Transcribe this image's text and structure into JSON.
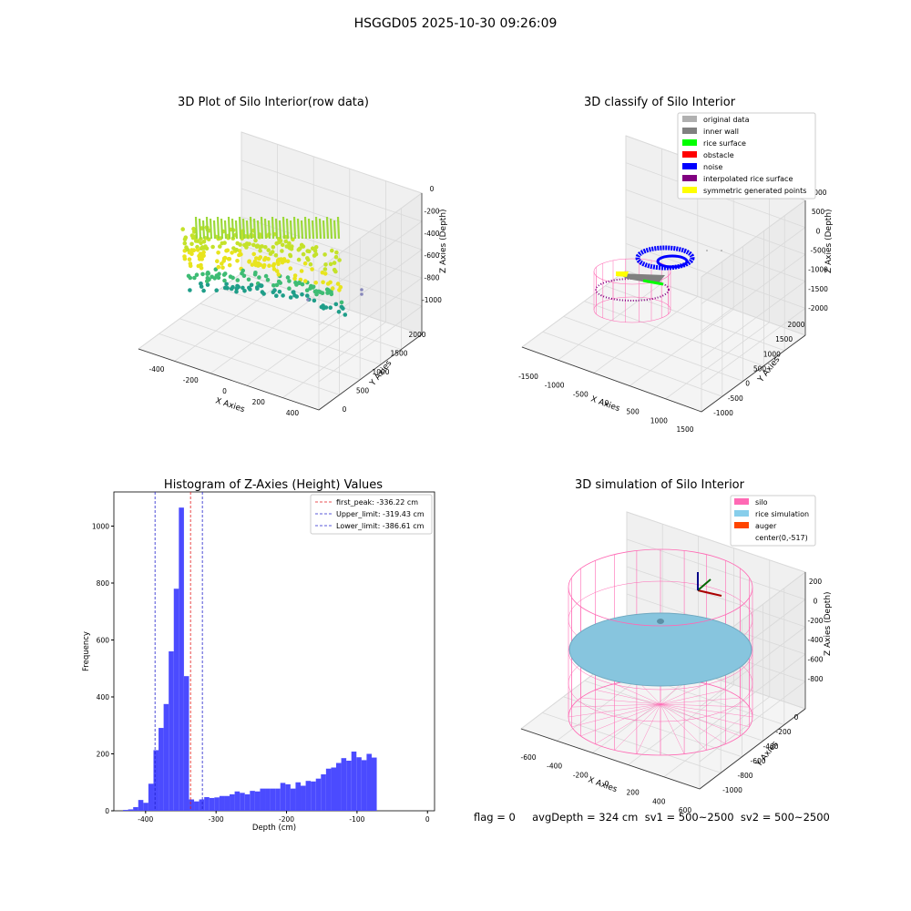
{
  "suptitle": "HSGGD05 2025-10-30 09:26:09",
  "footer": "flag = 0     avgDepth = 324 cm  sv1 = 500~2500  sv2 = 500~2500",
  "colors": {
    "wall": "#ff69b4",
    "rice": "#87c5de",
    "hist_bar": "#4b4bff",
    "peak_line": "#e41a1c",
    "limit_line": "#2222cc",
    "grid": "#d9d9d9",
    "pane": "#f0f0f0",
    "noise": "#0000ff",
    "interp": "#800080",
    "symmetric": "#ffff00",
    "rice_surface": "#00ff00",
    "inner_wall": "#808080"
  },
  "panels": {
    "raw": {
      "title": "3D Plot of Silo Interior(row data)",
      "xlabel": "X Axies",
      "ylabel": "Y Axies",
      "zlabel": "Z Axies (Depth)",
      "xticks": [
        "-400",
        "-200",
        "0",
        "200",
        "400"
      ],
      "yticks": [
        "0",
        "500",
        "1000",
        "1500",
        "2000"
      ],
      "zticks": [
        "0",
        "-200",
        "-400",
        "-600",
        "-800",
        "-1000"
      ]
    },
    "classify": {
      "title": "3D classify of Silo Interior",
      "xlabel": "X Axies",
      "ylabel": "Y Axies",
      "zlabel": "Z Axies (Depth)",
      "xticks": [
        "-1500",
        "-1000",
        "-500",
        "0",
        "500",
        "1000",
        "1500"
      ],
      "yticks": [
        "-1000",
        "-500",
        "0",
        "500",
        "1000",
        "1500",
        "2000"
      ],
      "zticks": [
        "1000",
        "500",
        "0",
        "-500",
        "-1000",
        "-1500",
        "-2000"
      ],
      "legend": [
        {
          "label": "original data",
          "color": "#b0b0b0"
        },
        {
          "label": "inner wall",
          "color": "#808080"
        },
        {
          "label": "rice surface",
          "color": "#00ff00"
        },
        {
          "label": "obstacle",
          "color": "#ff0000"
        },
        {
          "label": "noise",
          "color": "#0000ff"
        },
        {
          "label": "interpolated rice surface",
          "color": "#800080"
        },
        {
          "label": "symmetric generated points",
          "color": "#ffff00"
        }
      ]
    },
    "simulation": {
      "title": "3D simulation of Silo Interior",
      "xlabel": "X Axies",
      "ylabel": "Y Axies",
      "zlabel": "Z Axies (Depth)",
      "xticks": [
        "-600",
        "-400",
        "-200",
        "0",
        "200",
        "400",
        "600"
      ],
      "yticks": [
        "-1000",
        "-800",
        "-600",
        "-400",
        "-200",
        "0"
      ],
      "zticks": [
        "200",
        "0",
        "-200",
        "-400",
        "-600",
        "-800"
      ],
      "legend": [
        {
          "label": "silo",
          "color": "#ff69b4"
        },
        {
          "label": "rice simulation",
          "color": "#87ceeb"
        },
        {
          "label": "auger",
          "color": "#ff4500"
        },
        {
          "label": "center(0,-517)",
          "color": null
        }
      ]
    }
  },
  "chart_data": [
    {
      "type": "bar",
      "title": "Histogram of Z-Axies (Height) Values",
      "xlabel": "Depth (cm)",
      "ylabel": "Frequency",
      "xlim": [
        -445,
        10
      ],
      "ylim": [
        0,
        1120
      ],
      "xticks": [
        -400,
        -300,
        -200,
        -100,
        0
      ],
      "yticks": [
        0,
        200,
        400,
        600,
        800,
        1000
      ],
      "bin_width": 7.2,
      "bin_start": -432,
      "values": [
        3,
        5,
        13,
        38,
        28,
        95,
        213,
        291,
        375,
        560,
        780,
        1065,
        473,
        40,
        33,
        40,
        48,
        45,
        47,
        52,
        52,
        58,
        68,
        63,
        58,
        70,
        68,
        78,
        78,
        78,
        78,
        98,
        93,
        78,
        100,
        88,
        105,
        103,
        113,
        128,
        148,
        152,
        168,
        185,
        176,
        208,
        188,
        178,
        200,
        187
      ],
      "vlines": [
        {
          "label": "first_peak: -336.22 cm",
          "x": -336.22,
          "color": "#e41a1c"
        },
        {
          "label": "Upper_limit: -319.43 cm",
          "x": -319.43,
          "color": "#2222cc"
        },
        {
          "label": "Lower_limit: -386.61 cm",
          "x": -386.61,
          "color": "#2222cc"
        }
      ]
    }
  ]
}
